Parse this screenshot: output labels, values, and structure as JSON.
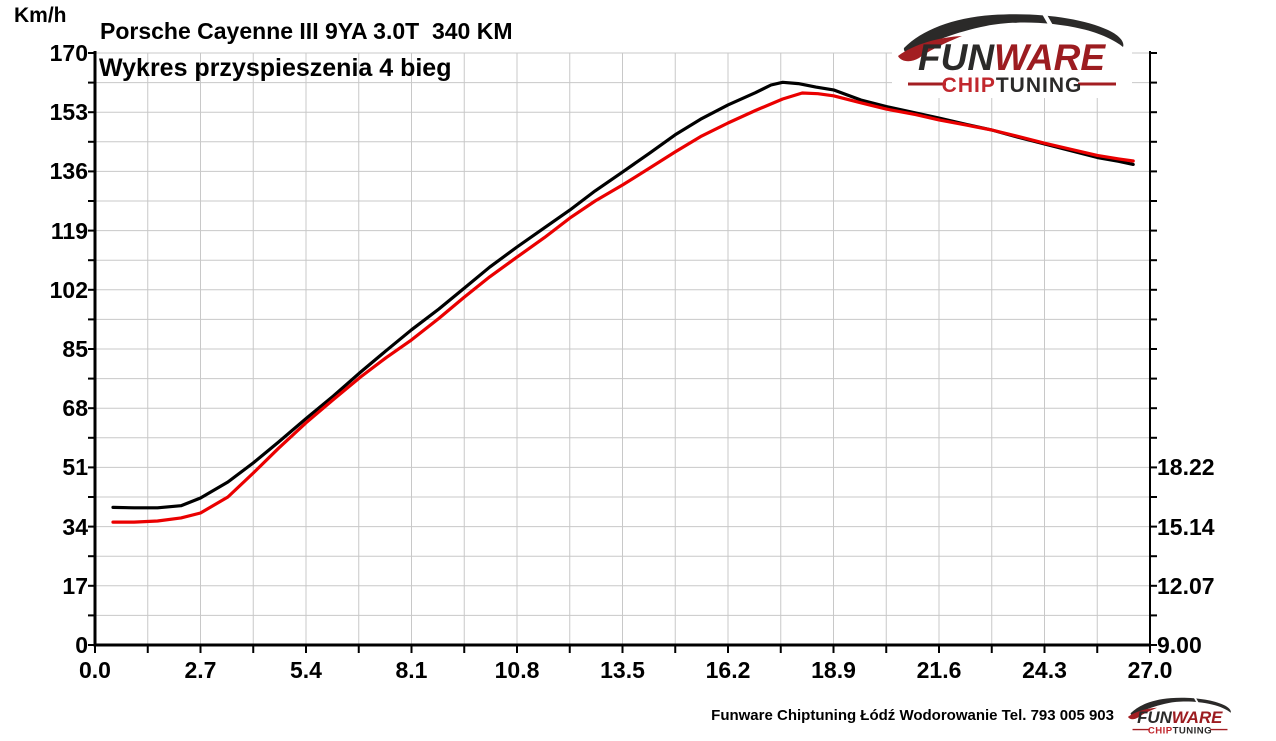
{
  "chart_data": {
    "type": "line",
    "title": "Porsche Cayenne III 9YA 3.0T  340 KM",
    "subtitle": "Wykres przyspieszenia 4 bieg",
    "y_unit": "Km/h",
    "x_range": [
      0,
      27
    ],
    "y_range": [
      0,
      170
    ],
    "x_grid_step": 1.35,
    "y_grid_step": 8.5,
    "grid_on": true,
    "grid_color": "#c8c8c8",
    "axis_color": "#000000",
    "x_tick_labels": [
      "0.0",
      "2.7",
      "5.4",
      "8.1",
      "10.8",
      "13.5",
      "16.2",
      "18.9",
      "21.6",
      "24.3",
      "27.0"
    ],
    "x_tick_values": [
      0,
      2.7,
      5.4,
      8.1,
      10.8,
      13.5,
      16.2,
      18.9,
      21.6,
      24.3,
      27.0
    ],
    "y_tick_labels": [
      "0",
      "17",
      "34",
      "51",
      "68",
      "85",
      "102",
      "119",
      "136",
      "153",
      "170"
    ],
    "y_tick_values": [
      0,
      17,
      34,
      51,
      68,
      85,
      102,
      119,
      136,
      153,
      170
    ],
    "right_axis_labels": [
      {
        "text": "18.22",
        "at_y_value": 51
      },
      {
        "text": "15.14",
        "at_y_value": 34
      },
      {
        "text": "12.07",
        "at_y_value": 17
      },
      {
        "text": "9.00",
        "at_y_value": 0
      }
    ],
    "legend": "none",
    "series": [
      {
        "name": "run-black",
        "color": "#000000",
        "points": [
          [
            0.46,
            39.5
          ],
          [
            1.0,
            39.4
          ],
          [
            1.6,
            39.4
          ],
          [
            2.2,
            40.0
          ],
          [
            2.7,
            42.2
          ],
          [
            3.4,
            46.8
          ],
          [
            4.05,
            52.3
          ],
          [
            4.7,
            58.3
          ],
          [
            5.4,
            65.0
          ],
          [
            6.1,
            71.5
          ],
          [
            6.8,
            78.4
          ],
          [
            7.45,
            84.5
          ],
          [
            8.1,
            90.5
          ],
          [
            8.8,
            96.5
          ],
          [
            9.45,
            102.5
          ],
          [
            10.1,
            108.5
          ],
          [
            10.8,
            114.3
          ],
          [
            11.5,
            119.8
          ],
          [
            12.15,
            124.9
          ],
          [
            12.8,
            130.4
          ],
          [
            13.5,
            135.8
          ],
          [
            14.2,
            141.3
          ],
          [
            14.85,
            146.5
          ],
          [
            15.5,
            151.0
          ],
          [
            16.2,
            155.1
          ],
          [
            16.9,
            158.6
          ],
          [
            17.3,
            160.8
          ],
          [
            17.6,
            161.6
          ],
          [
            18.0,
            161.2
          ],
          [
            18.45,
            160.2
          ],
          [
            18.9,
            159.4
          ],
          [
            19.6,
            156.5
          ],
          [
            20.25,
            154.6
          ],
          [
            21.0,
            152.8
          ],
          [
            21.6,
            151.3
          ],
          [
            22.3,
            149.5
          ],
          [
            22.95,
            147.9
          ],
          [
            23.6,
            145.9
          ],
          [
            24.3,
            143.9
          ],
          [
            25.0,
            141.9
          ],
          [
            25.65,
            140.0
          ],
          [
            26.2,
            138.9
          ],
          [
            26.57,
            138.0
          ]
        ]
      },
      {
        "name": "run-red",
        "color": "#ea0000",
        "points": [
          [
            0.46,
            35.3
          ],
          [
            1.0,
            35.3
          ],
          [
            1.6,
            35.6
          ],
          [
            2.2,
            36.5
          ],
          [
            2.7,
            37.9
          ],
          [
            3.4,
            42.5
          ],
          [
            4.05,
            49.4
          ],
          [
            4.7,
            56.5
          ],
          [
            5.4,
            63.8
          ],
          [
            6.1,
            70.5
          ],
          [
            6.8,
            77.0
          ],
          [
            7.45,
            82.5
          ],
          [
            8.1,
            87.6
          ],
          [
            8.8,
            93.8
          ],
          [
            9.45,
            99.9
          ],
          [
            10.1,
            105.7
          ],
          [
            10.8,
            111.4
          ],
          [
            11.5,
            117.0
          ],
          [
            12.15,
            122.6
          ],
          [
            12.8,
            127.5
          ],
          [
            13.5,
            132.1
          ],
          [
            14.2,
            137.0
          ],
          [
            14.85,
            141.6
          ],
          [
            15.5,
            146.0
          ],
          [
            16.2,
            149.9
          ],
          [
            16.9,
            153.5
          ],
          [
            17.6,
            156.8
          ],
          [
            18.1,
            158.5
          ],
          [
            18.5,
            158.3
          ],
          [
            18.9,
            157.7
          ],
          [
            19.6,
            155.7
          ],
          [
            20.25,
            153.9
          ],
          [
            21.0,
            152.3
          ],
          [
            21.6,
            150.8
          ],
          [
            22.3,
            149.3
          ],
          [
            22.95,
            147.9
          ],
          [
            23.6,
            146.1
          ],
          [
            24.3,
            144.1
          ],
          [
            25.0,
            142.3
          ],
          [
            25.65,
            140.6
          ],
          [
            26.2,
            139.6
          ],
          [
            26.57,
            139.0
          ]
        ]
      }
    ]
  },
  "logo": {
    "fun": "FUN",
    "ware": "WARE",
    "chip": "CHIP",
    "tuning": "TUNING",
    "dark_color": "#2b2a29",
    "maroon_color": "#9c1c20",
    "red_color": "#c1272d"
  },
  "footer": {
    "text": "Funware Chiptuning Łódź Wodorowanie Tel. 793 005 903"
  }
}
